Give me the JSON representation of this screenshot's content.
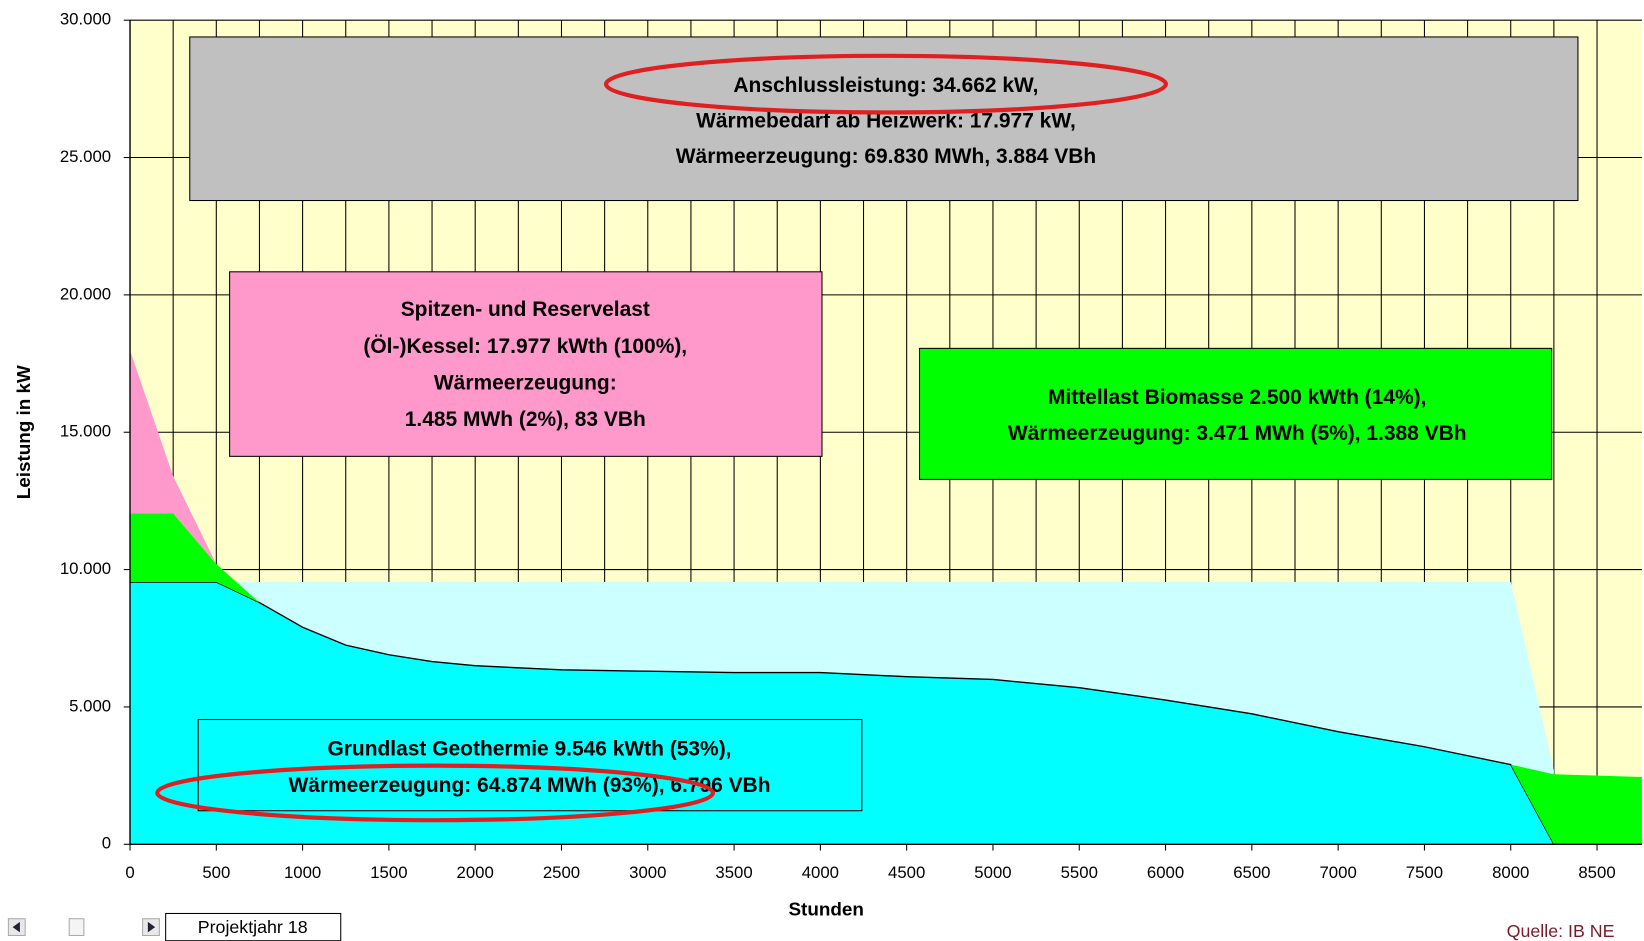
{
  "chart_data": {
    "type": "area",
    "stacked": true,
    "xlabel": "Stunden",
    "ylabel": "Leistung in kW",
    "x": [
      0,
      250,
      500,
      750,
      1000,
      1250,
      1500,
      1750,
      2000,
      2500,
      3000,
      3500,
      4000,
      4500,
      5000,
      5500,
      6000,
      6500,
      7000,
      7500,
      8000,
      8250,
      8760
    ],
    "series": [
      {
        "color": "#ccffff",
        "stacked": false,
        "values": [
          9546,
          9546,
          9546,
          9546,
          9546,
          9546,
          9546,
          9546,
          9546,
          9546,
          9546,
          9546,
          9546,
          9546,
          9546,
          9546,
          9546,
          9546,
          9546,
          9546,
          9546,
          2700,
          null
        ]
      },
      {
        "color": "#00ffff",
        "values": [
          9546,
          9546,
          9546,
          8800,
          7900,
          7250,
          6900,
          6650,
          6500,
          6350,
          6300,
          6250,
          6250,
          6100,
          6000,
          5700,
          5250,
          4750,
          4100,
          3550,
          2900,
          0,
          0
        ]
      },
      {
        "color": "#00ff00",
        "values": [
          2500,
          2500,
          654,
          0,
          0,
          0,
          0,
          0,
          0,
          0,
          0,
          0,
          0,
          0,
          0,
          0,
          0,
          0,
          0,
          0,
          0,
          2550,
          2450
        ]
      },
      {
        "color": "#ff99cc",
        "values": [
          5931,
          1354,
          0,
          0,
          0,
          0,
          0,
          0,
          0,
          0,
          0,
          0,
          0,
          0,
          0,
          0,
          0,
          0,
          0,
          0,
          0,
          0,
          0
        ]
      }
    ],
    "xlim": [
      0,
      8760
    ],
    "ylim": [
      0,
      30000
    ],
    "xticks": [
      0,
      500,
      1000,
      1500,
      2000,
      2500,
      3000,
      3500,
      4000,
      4500,
      5000,
      5500,
      6000,
      6500,
      7000,
      7500,
      8000,
      8500
    ],
    "yticks": [
      {
        "value": 0,
        "label": "0"
      },
      {
        "value": 5000,
        "label": "5.000"
      },
      {
        "value": 10000,
        "label": "10.000"
      },
      {
        "value": 15000,
        "label": "15.000"
      },
      {
        "value": 20000,
        "label": "20.000"
      },
      {
        "value": 25000,
        "label": "25.000"
      },
      {
        "value": 30000,
        "label": "30.000"
      }
    ],
    "grid": true,
    "background": "#ffffcc",
    "annotations": [
      {
        "color": "#c0c0c0",
        "lines": [
          "Anschlussleistung: 34.662 kW,",
          "Wärmebedarf ab Heizwerk: 17.977 kW,",
          "Wärmeerzeugung: 69.830 MWh, 3.884 VBh"
        ]
      },
      {
        "color": "#ff99cc",
        "lines": [
          "Spitzen- und Reservelast",
          "(Öl-)Kessel: 17.977 kWth (100%),",
          "Wärmeerzeugung:",
          "1.485 MWh (2%), 83 VBh"
        ]
      },
      {
        "color": "#00ff00",
        "lines": [
          "Mittellast Biomasse 2.500 kWth (14%),",
          "Wärmeerzeugung: 3.471 MWh (5%), 1.388 VBh"
        ]
      },
      {
        "color": "#00ffff",
        "lines": [
          "Grundlast Geothermie 9.546 kWth (53%),",
          "Wärmeerzeugung: 64.874 MWh (93%), 6.796 VBh"
        ]
      }
    ],
    "sheet_tab": "Projektjahr 18",
    "source": "Quelle: IB NE"
  }
}
